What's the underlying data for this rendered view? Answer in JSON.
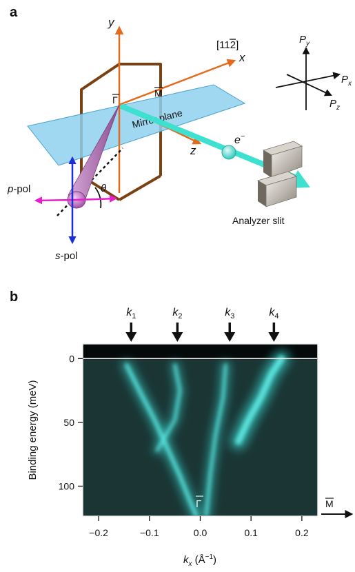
{
  "panel_a": {
    "letter": "a",
    "axis_y": "y",
    "axis_x": "x",
    "axis_z": "z",
    "direction": "[11",
    "direction_bar_digit": "2",
    "direction_close": "]",
    "gamma_bar": "Γ",
    "m_bar": "M",
    "mirror_plane": "Mirror plane",
    "electron": "e",
    "electron_sup": "−",
    "theta": "θ",
    "p_pol_pre": "p",
    "p_pol_post": "-pol",
    "s_pol_pre": "s",
    "s_pol_post": "-pol",
    "analyzer": "Analyzer slit",
    "p_label": "P",
    "px_sub": "x",
    "py_sub": "y",
    "pz_sub": "z",
    "colors": {
      "orange": "#e46a1b",
      "brown": "#7a4212",
      "plane": "#8fd0ef",
      "beam": "#3ee0cf",
      "magenta": "#e61ecc",
      "blue": "#1c2fd6",
      "cone": "#b27ab4"
    }
  },
  "panel_b": {
    "letter": "b",
    "k1": "k",
    "k1_sub": "1",
    "k2": "k",
    "k2_sub": "2",
    "k3": "k",
    "k3_sub": "3",
    "k4": "k",
    "k4_sub": "4",
    "gamma": "Γ",
    "m_label": "M",
    "chart_data": {
      "type": "heatmap",
      "xlabel_main": "k",
      "xlabel_sub": "x",
      "xlabel_unit": " (Å",
      "xlabel_exp": "−1",
      "xlabel_close": ")",
      "ylabel": "Binding energy (meV)",
      "xlim": [
        -0.23,
        0.23
      ],
      "ylim": [
        -11,
        123
      ],
      "x_ticks": [
        -0.2,
        -0.1,
        0.0,
        0.1,
        0.2
      ],
      "x_tick_labels": [
        "−0.2",
        "−0.1",
        "0.0",
        "0.1",
        "0.2"
      ],
      "y_ticks": [
        0,
        50,
        100
      ],
      "y_tick_labels": [
        "0",
        "50",
        "100"
      ],
      "fermi_level": 0,
      "k_marks": [
        -0.136,
        -0.045,
        0.058,
        0.145
      ],
      "bands": [
        {
          "name": "",
          "points": [
            [
              -0.145,
              5
            ],
            [
              -0.12,
              25
            ],
            [
              -0.09,
              48
            ],
            [
              -0.065,
              70
            ],
            [
              -0.04,
              92
            ],
            [
              -0.02,
              112
            ],
            [
              -0.008,
              123
            ]
          ]
        },
        {
          "name": "",
          "points": [
            [
              -0.05,
              5
            ],
            [
              -0.04,
              25
            ],
            [
              -0.05,
              48
            ],
            [
              -0.085,
              72
            ]
          ]
        },
        {
          "name": "",
          "points": [
            [
              0.05,
              5
            ],
            [
              0.045,
              30
            ],
            [
              0.03,
              60
            ],
            [
              0.02,
              90
            ],
            [
              0.012,
              123
            ]
          ]
        },
        {
          "name": "",
          "points": [
            [
              0.16,
              0
            ],
            [
              0.14,
              12
            ],
            [
              0.12,
              30
            ],
            [
              0.095,
              48
            ],
            [
              0.075,
              65
            ]
          ]
        }
      ]
    }
  }
}
